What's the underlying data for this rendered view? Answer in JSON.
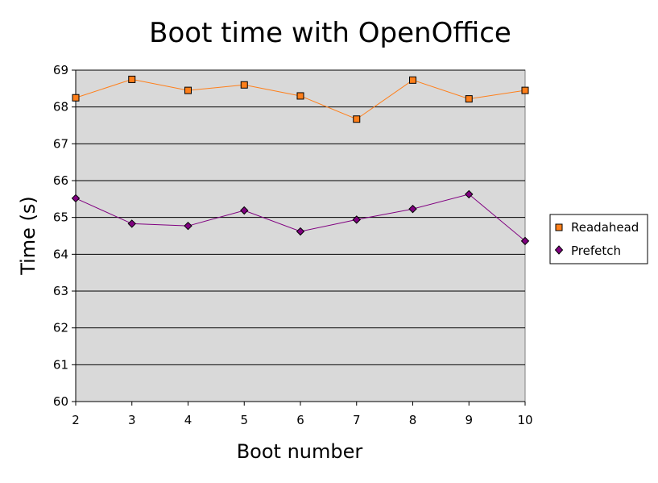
{
  "chart_data": {
    "type": "line",
    "title": "Boot time with OpenOffice",
    "xlabel": "Boot number",
    "ylabel": "Time (s)",
    "categories": [
      "2",
      "3",
      "4",
      "5",
      "6",
      "7",
      "8",
      "9",
      "10"
    ],
    "ylim": [
      60,
      69
    ],
    "yticks": [
      "60",
      "61",
      "62",
      "63",
      "64",
      "65",
      "66",
      "67",
      "68",
      "69"
    ],
    "grid": true,
    "legend_position": "right",
    "plot_background": "#d9d9d9",
    "series": [
      {
        "name": "Readahead",
        "marker": "square",
        "color": "#ff7f1a",
        "values": [
          68.25,
          68.75,
          68.45,
          68.6,
          68.3,
          67.67,
          68.73,
          68.22,
          68.45
        ]
      },
      {
        "name": "Prefetch",
        "marker": "diamond",
        "color": "#800080",
        "values": [
          65.52,
          64.83,
          64.77,
          65.19,
          64.62,
          64.94,
          65.23,
          65.63,
          64.36
        ]
      }
    ]
  }
}
